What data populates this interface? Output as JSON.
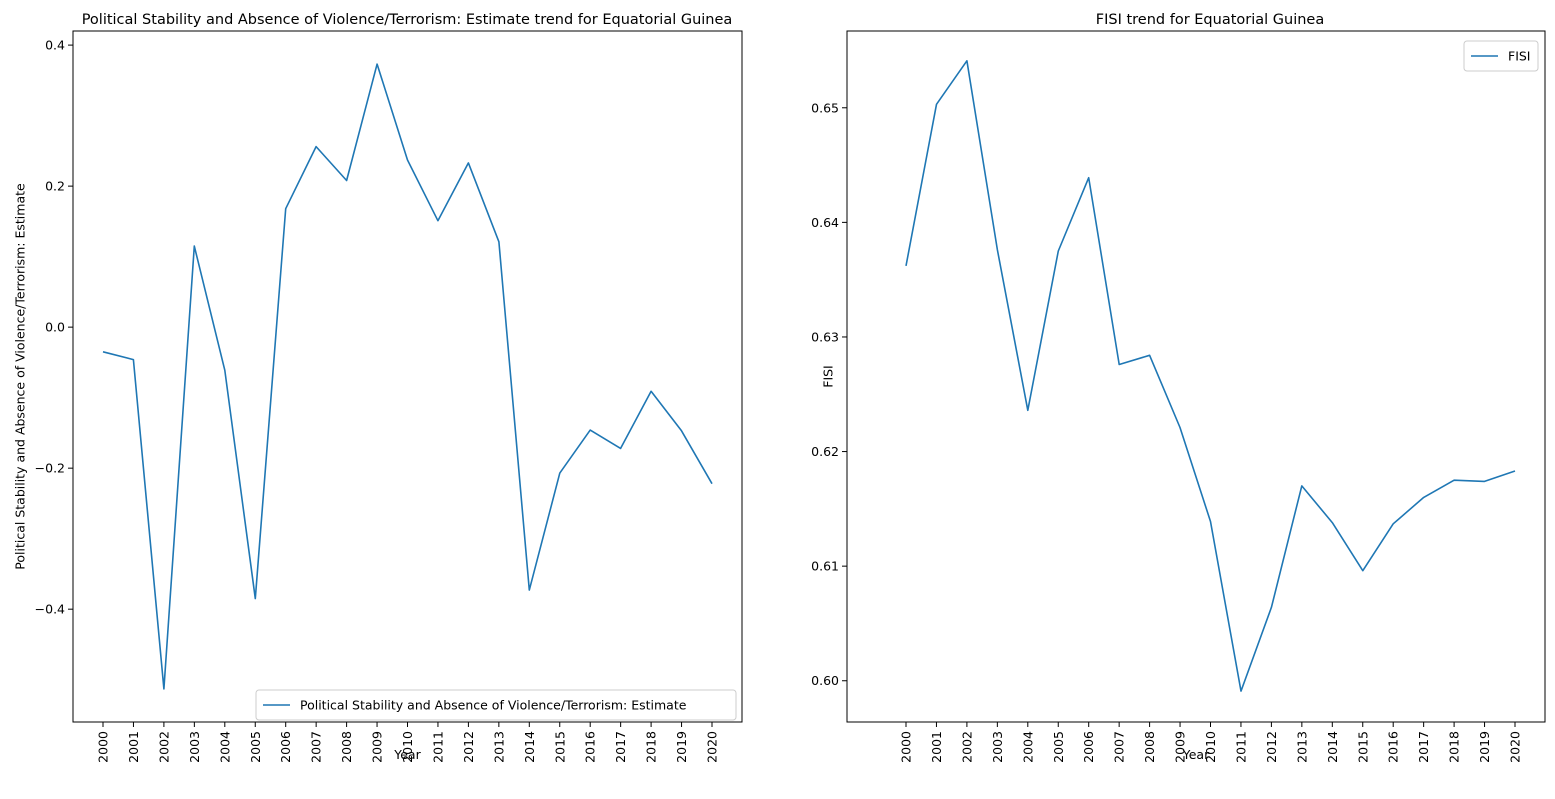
{
  "chart_data": [
    {
      "type": "line",
      "title": "Political Stability and Absence of Violence/Terrorism: Estimate trend for Equatorial Guinea",
      "xlabel": "Year",
      "ylabel": "Political Stability and Absence of Violence/Terrorism: Estimate",
      "x": [
        "2000",
        "2001",
        "2002",
        "2003",
        "2004",
        "2005",
        "2006",
        "2007",
        "2008",
        "2009",
        "2010",
        "2011",
        "2012",
        "2013",
        "2014",
        "2015",
        "2016",
        "2017",
        "2018",
        "2019",
        "2020"
      ],
      "yticks": [
        "0.4",
        "0.2",
        "0.0",
        "−0.2",
        "−0.4"
      ],
      "ylim": [
        -0.56,
        0.42
      ],
      "series": [
        {
          "name": "Political Stability and Absence of Violence/Terrorism: Estimate",
          "color": "#1f77b4",
          "values": [
            -0.035,
            -0.046,
            -0.513,
            0.115,
            -0.061,
            -0.385,
            0.168,
            0.256,
            0.208,
            0.373,
            0.237,
            0.151,
            0.233,
            0.121,
            -0.373,
            -0.207,
            -0.146,
            -0.172,
            -0.091,
            -0.147,
            -0.222
          ]
        }
      ],
      "legend": "lower right",
      "grid": false
    },
    {
      "type": "line",
      "title": "FISI trend for Equatorial Guinea",
      "xlabel": "Year",
      "ylabel": "FISI",
      "x": [
        "2000",
        "2001",
        "2002",
        "2003",
        "2004",
        "2005",
        "2006",
        "2007",
        "2008",
        "2009",
        "2010",
        "2011",
        "2012",
        "2013",
        "2014",
        "2015",
        "2016",
        "2017",
        "2018",
        "2019",
        "2020"
      ],
      "yticks": [
        "0.65",
        "0.64",
        "0.63",
        "0.62",
        "0.61",
        "0.60"
      ],
      "ylim": [
        0.5964,
        0.6567
      ],
      "series": [
        {
          "name": "FISI",
          "color": "#1f77b4",
          "values": [
            0.6362,
            0.6503,
            0.6541,
            0.6376,
            0.6236,
            0.6375,
            0.6439,
            0.6276,
            0.6284,
            0.6221,
            0.6139,
            0.5991,
            0.6064,
            0.617,
            0.6138,
            0.6096,
            0.6137,
            0.616,
            0.6175,
            0.6174,
            0.6183
          ]
        }
      ],
      "legend": "upper right",
      "grid": false
    }
  ]
}
